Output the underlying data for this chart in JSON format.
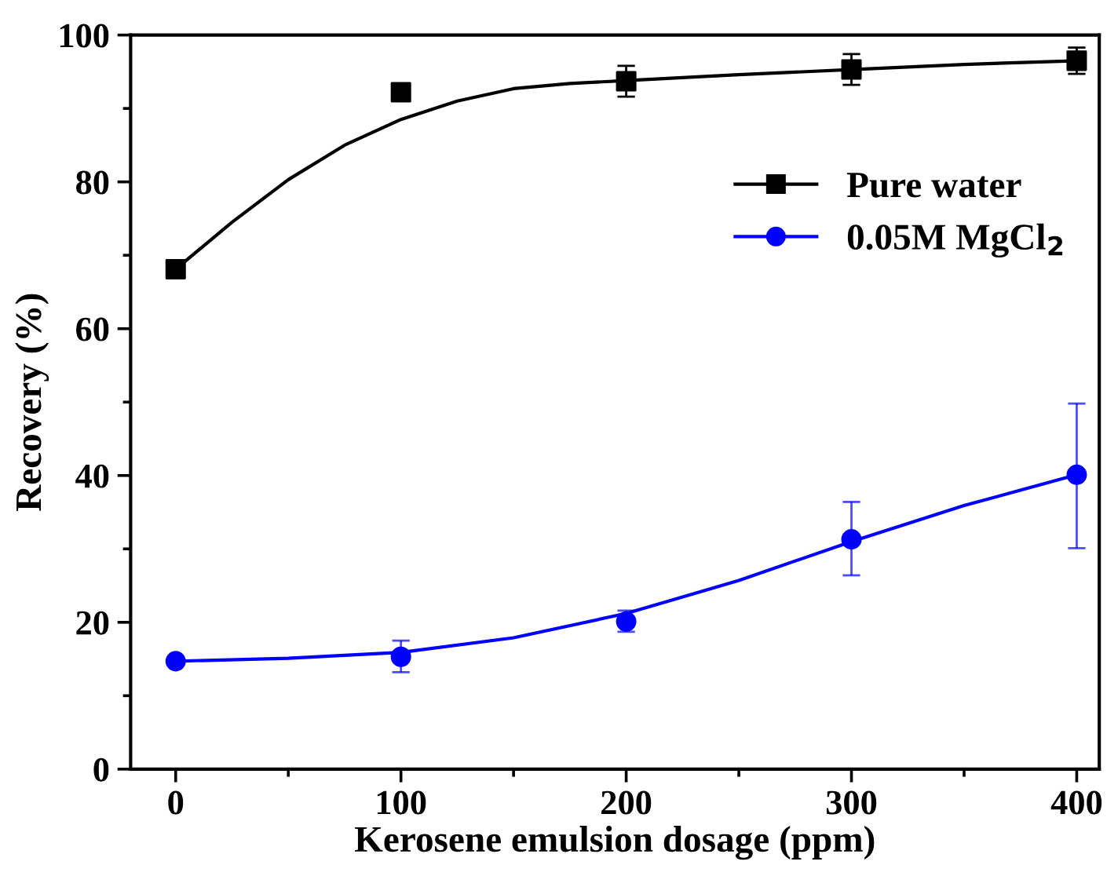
{
  "chart_data": {
    "type": "scatter",
    "xlabel": "Kerosene emulsion dosage (ppm)",
    "ylabel": "Recovery (%)",
    "xlim": [
      -20,
      410
    ],
    "ylim": [
      0,
      100
    ],
    "xticks": [
      0,
      100,
      200,
      300,
      400
    ],
    "yticks": [
      0,
      20,
      40,
      60,
      80,
      100
    ],
    "grid": false,
    "legend": "top right",
    "series": [
      {
        "name": "Pure water",
        "marker": "square",
        "color": "#000000",
        "x": [
          0,
          100,
          200,
          300,
          400
        ],
        "values": [
          68.1,
          92.2,
          93.7,
          95.3,
          96.5
        ],
        "errors": [
          null,
          null,
          2.1,
          2.1,
          1.8
        ]
      },
      {
        "name": "0.05M MgCl$_{2}$",
        "marker": "circle",
        "color": "#0000ff",
        "x": [
          0,
          100,
          200,
          300,
          400
        ],
        "values": [
          14.7,
          15.3,
          20.1,
          31.3,
          40.1
        ],
        "errors": [
          null,
          [
            13.2,
            17.5
          ],
          [
            18.7,
            21.6
          ],
          [
            26.4,
            36.4
          ],
          [
            30.1,
            49.8
          ]
        ]
      },
      {
        "type": "line",
        "marker": "none",
        "color": "#000000",
        "x": [
          0,
          25,
          50,
          75,
          100,
          125,
          150,
          175,
          200,
          250,
          300,
          350,
          400
        ],
        "values": [
          68.1,
          74.5,
          80.3,
          85,
          88.5,
          91,
          92.7,
          93.4,
          93.8,
          94.6,
          95.3,
          96,
          96.5
        ]
      },
      {
        "type": "line",
        "marker": "none",
        "color": "#0000ff",
        "x": [
          0,
          50,
          100,
          150,
          200,
          250,
          300,
          350,
          400
        ],
        "values": [
          14.7,
          15.1,
          15.9,
          17.9,
          21.2,
          25.7,
          31.0,
          35.9,
          40.1
        ]
      }
    ]
  }
}
